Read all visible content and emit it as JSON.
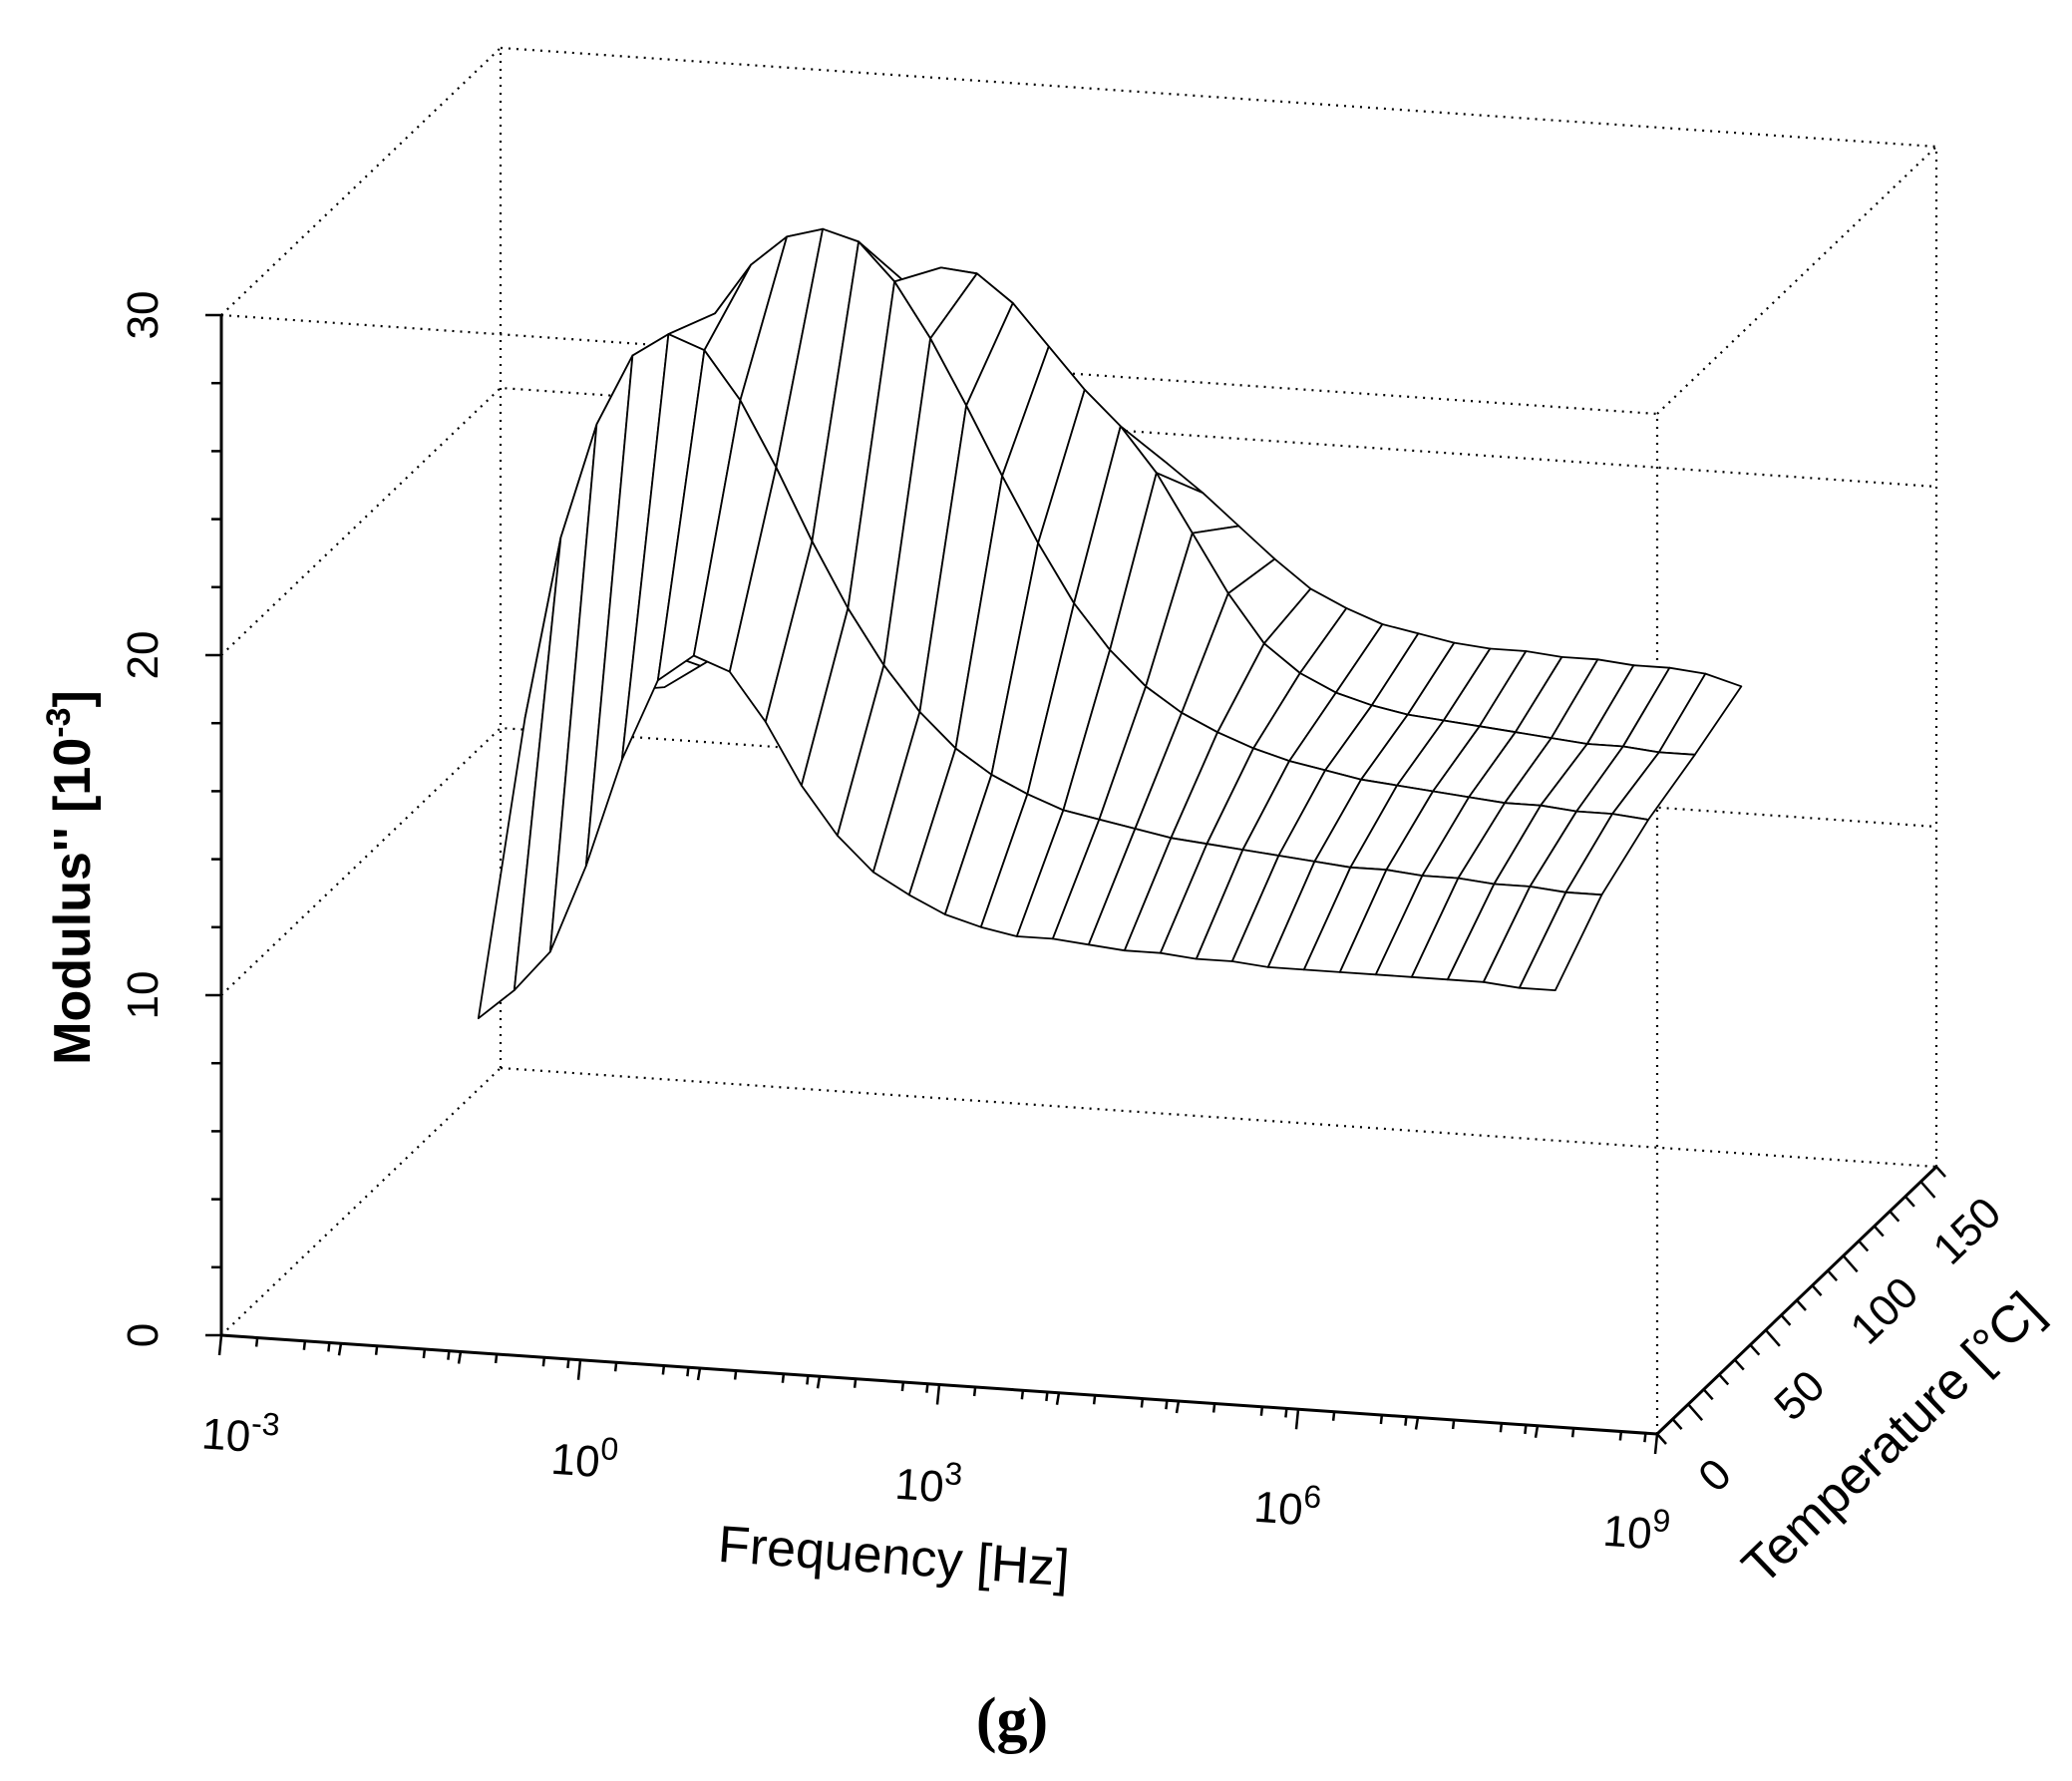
{
  "chart_data": {
    "type": "surface3d",
    "title": "",
    "caption": "(g)",
    "x_axis": {
      "label": "Frequency [Hz]",
      "scale": "log",
      "range": [
        0.001,
        1000000000
      ],
      "ticks": [
        0.001,
        1,
        1000,
        1000000,
        1000000000
      ],
      "tick_labels": [
        {
          "base": "10",
          "exp": "-3"
        },
        {
          "base": "10",
          "exp": "0"
        },
        {
          "base": "10",
          "exp": "3"
        },
        {
          "base": "10",
          "exp": "6"
        },
        {
          "base": "10",
          "exp": "9"
        }
      ]
    },
    "y_axis": {
      "label_main": "Temperature [",
      "label_unit": "°C]",
      "range": [
        -20,
        160
      ],
      "ticks": [
        0,
        50,
        100,
        150
      ],
      "tick_labels": [
        "0",
        "50",
        "100",
        "150"
      ]
    },
    "z_axis": {
      "label_main": "Modulus'' [10",
      "label_exp": "-3",
      "label_end": "]",
      "range": [
        0,
        30
      ],
      "ticks": [
        0,
        10,
        20,
        30
      ],
      "tick_labels": [
        "0",
        "10",
        "20",
        "30"
      ]
    },
    "surface": {
      "log10_frequency": [
        -1.5,
        -1.2,
        -0.9,
        -0.6,
        -0.3,
        0,
        0.3,
        0.6,
        0.9,
        1.2,
        1.5,
        1.8,
        2.1,
        2.4,
        2.7,
        3,
        3.3,
        3.6,
        3.9,
        4.2,
        4.5,
        4.8,
        5.1,
        5.4,
        5.7,
        6,
        6.3,
        6.6,
        6.9,
        7.2,
        7.5
      ],
      "temperature": [
        30,
        60,
        90,
        120,
        150
      ],
      "modulus_rows": [
        [
          7.5,
          8.4,
          9.6,
          12.2,
          15.4,
          17.8,
          18.6,
          18.2,
          16.8,
          15.0,
          13.6,
          12.6,
          12.0,
          11.5,
          11.2,
          11.0,
          11.0,
          10.9,
          10.8,
          10.8,
          10.7,
          10.7,
          10.6,
          10.6,
          10.6,
          10.6,
          10.6,
          10.6,
          10.6,
          10.5,
          10.5
        ],
        [
          15.0,
          20.4,
          23.8,
          25.9,
          26.6,
          26.2,
          24.8,
          22.9,
          20.8,
          18.9,
          17.3,
          16.0,
          15.0,
          14.3,
          13.8,
          13.4,
          13.2,
          13.0,
          12.8,
          12.7,
          12.6,
          12.5,
          12.4,
          12.3,
          12.3,
          12.2,
          12.2,
          12.1,
          12.1,
          12.0,
          12.0
        ],
        [
          14.5,
          17.5,
          20.5,
          23.5,
          25.9,
          27.4,
          28.3,
          28.6,
          28.3,
          27.2,
          25.6,
          23.7,
          21.7,
          19.8,
          18.1,
          16.8,
          15.8,
          15.1,
          14.6,
          14.2,
          13.9,
          13.7,
          13.5,
          13.4,
          13.3,
          13.2,
          13.1,
          13.1,
          13.0,
          13.0,
          12.9
        ],
        [
          13.2,
          14.5,
          16.0,
          17.8,
          19.8,
          21.7,
          23.4,
          24.8,
          25.8,
          26.3,
          26.2,
          25.4,
          24.2,
          23.0,
          22.0,
          20.7,
          19.0,
          17.3,
          15.9,
          15.1,
          14.6,
          14.3,
          14.1,
          14.0,
          13.9,
          13.8,
          13.7,
          13.6,
          13.6,
          13.5,
          13.5
        ],
        [
          12.0,
          12.7,
          13.4,
          14.2,
          15.1,
          16.0,
          17.0,
          18.0,
          18.9,
          19.7,
          20.2,
          20.5,
          20.5,
          20.2,
          19.6,
          18.8,
          17.9,
          17.0,
          16.2,
          15.7,
          15.3,
          15.1,
          14.9,
          14.8,
          14.8,
          14.7,
          14.7,
          14.6,
          14.6,
          14.5,
          14.2
        ]
      ]
    }
  }
}
